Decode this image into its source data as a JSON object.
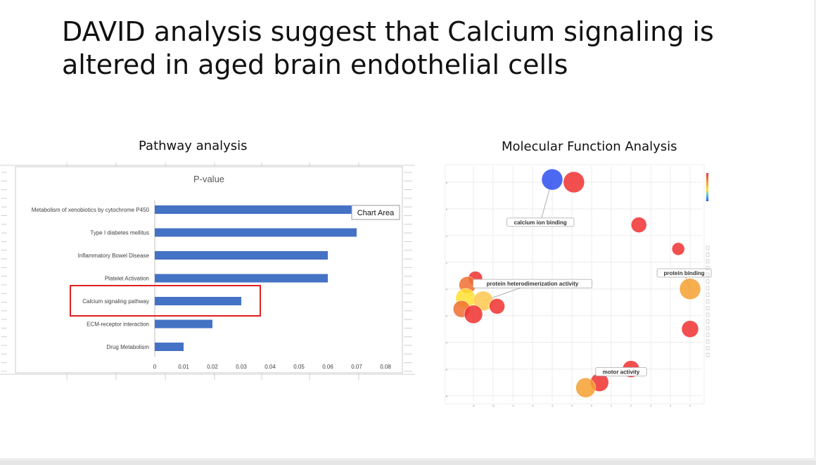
{
  "slide": {
    "title": "DAVID analysis suggest that Calcium signaling is altered in aged brain endothelial cells",
    "pathway_heading": "Pathway analysis",
    "mf_heading": "Molecular Function Analysis",
    "tooltip": "Chart Area"
  },
  "chart_data": [
    {
      "type": "bar",
      "orientation": "horizontal",
      "title": "P-value",
      "categories": [
        "Metabolism of xenobiotics by cytochrome P450",
        "Type I diabetes mellitus",
        "Inflammatory Bowel Disease",
        "Platelet Activation",
        "Calcium signaling pathway",
        "ECM-receptor interaction",
        "Drug Metabolism"
      ],
      "values": [
        0.072,
        0.07,
        0.06,
        0.06,
        0.03,
        0.02,
        0.01
      ],
      "xlim": [
        0,
        0.08
      ],
      "xticks": [
        "0",
        "0.01",
        "0.02",
        "0.03",
        "0.04",
        "0.05",
        "0.06",
        "0.07",
        "0.08"
      ],
      "highlighted_category": "Calcium signaling pathway",
      "bar_color": "#4472c4",
      "highlight_color": "#e02020"
    },
    {
      "type": "scatter",
      "title": "",
      "xlim": [
        -7,
        5.5
      ],
      "ylim": [
        -8.5,
        9
      ],
      "xticks": [
        "-6",
        "-5",
        "-4",
        "-3",
        "-2",
        "-1",
        "0",
        "1",
        "2",
        "3",
        "4",
        "5"
      ],
      "yticks": [
        "8",
        "6",
        "4",
        "2",
        "0",
        "-2",
        "-4",
        "-6",
        "-8"
      ],
      "points": [
        {
          "x": -2.0,
          "y": 8.2,
          "size": 15,
          "color": "#2d4ff0"
        },
        {
          "x": -0.9,
          "y": 8.0,
          "size": 15,
          "color": "#f03030"
        },
        {
          "x": 2.4,
          "y": 4.8,
          "size": 11,
          "color": "#f03030"
        },
        {
          "x": 4.4,
          "y": 3.0,
          "size": 9,
          "color": "#f03030"
        },
        {
          "x": -5.9,
          "y": 0.8,
          "size": 10,
          "color": "#f03030"
        },
        {
          "x": -6.3,
          "y": 0.3,
          "size": 12,
          "color": "#f07030"
        },
        {
          "x": -6.4,
          "y": -0.7,
          "size": 14,
          "color": "#ffe030"
        },
        {
          "x": -5.5,
          "y": -0.9,
          "size": 14,
          "color": "#ffc850"
        },
        {
          "x": -6.6,
          "y": -1.5,
          "size": 12,
          "color": "#f07030"
        },
        {
          "x": -6.0,
          "y": -1.9,
          "size": 13,
          "color": "#f03030"
        },
        {
          "x": -4.8,
          "y": -1.3,
          "size": 11,
          "color": "#f03030"
        },
        {
          "x": 5.0,
          "y": 0.0,
          "size": 15,
          "color": "#f5a030"
        },
        {
          "x": 5.0,
          "y": -3.0,
          "size": 12,
          "color": "#f03030"
        },
        {
          "x": 2.0,
          "y": -6.0,
          "size": 12,
          "color": "#f03030"
        },
        {
          "x": 0.4,
          "y": -7.0,
          "size": 13,
          "color": "#f03030"
        },
        {
          "x": -0.3,
          "y": -7.4,
          "size": 14,
          "color": "#f5a030"
        }
      ],
      "annotations": [
        "calcium ion binding",
        "protein heterodimerization activity",
        "protein binding",
        "motor activity"
      ]
    }
  ]
}
